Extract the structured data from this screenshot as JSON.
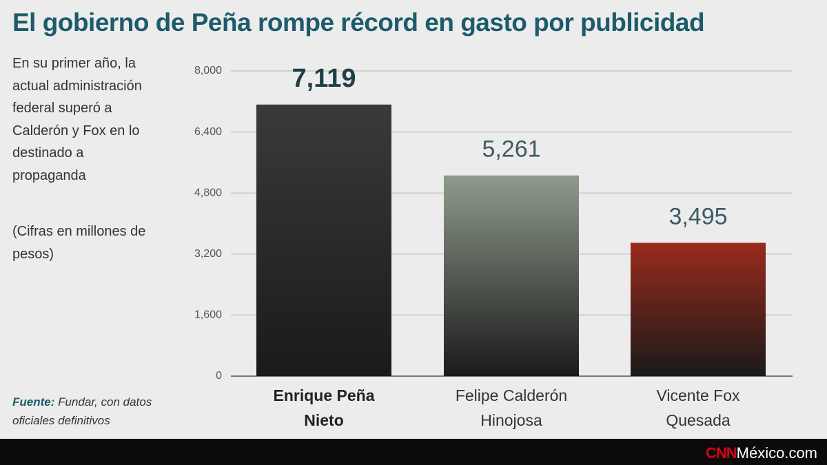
{
  "chart_data": {
    "type": "bar",
    "title": "El gobierno de Peña rompe récord en gasto por publicidad",
    "subtitle": "En su primer año, la actual administración federal superó a Calderón y Fox en lo destinado a propaganda",
    "note": "(Cifras en millones de pesos)",
    "source_label": "Fuente:",
    "source": "Fundar, con datos oficiales definitivos",
    "brand_logo": "CNN",
    "brand": "México.com",
    "categories": [
      "Enrique Peña Nieto",
      "Felipe Calderón Hinojosa",
      "Vicente Fox Quesada"
    ],
    "values": [
      7119,
      5261,
      3495
    ],
    "value_labels": [
      "7,119",
      "5,261",
      "3,495"
    ],
    "colors": [
      "#3b3a38",
      "#8f9b8c",
      "#9a2a1c"
    ],
    "ylim": [
      0,
      8000
    ],
    "yticks": [
      0,
      {
        "value": 1600,
        "label": "1,600"
      },
      {
        "value": 3200,
        "label": "3,200"
      },
      {
        "value": 4800,
        "label": "4,800"
      },
      {
        "value": 6400,
        "label": "6,400"
      },
      {
        "value": 8000,
        "label": "8,000"
      }
    ],
    "grid": true
  }
}
